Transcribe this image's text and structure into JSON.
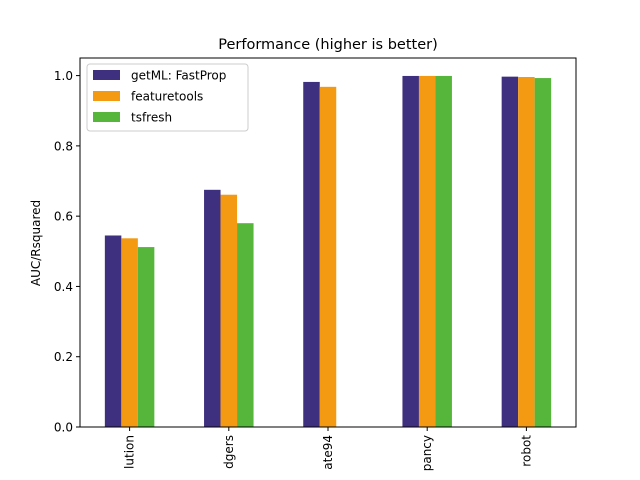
{
  "chart_data": {
    "type": "bar",
    "title": "Performance (higher is better)",
    "xlabel": "",
    "ylabel": "AUC/Rsquared",
    "ylim": [
      0,
      1.05
    ],
    "yticks": [
      "0.0",
      "0.2",
      "0.4",
      "0.6",
      "0.8",
      "1.0"
    ],
    "categories": [
      "lution",
      "dgers",
      "ate94",
      "pancy",
      "robot"
    ],
    "series": [
      {
        "name": "getML: FastProp",
        "color": "#3f2f7f",
        "values": [
          0.545,
          0.675,
          0.982,
          0.999,
          0.997
        ]
      },
      {
        "name": "featuretools",
        "color": "#f39a12",
        "values": [
          0.537,
          0.661,
          0.968,
          0.999,
          0.996
        ]
      },
      {
        "name": "tsfresh",
        "color": "#55b63b",
        "values": [
          0.512,
          0.58,
          null,
          0.999,
          0.993
        ]
      }
    ],
    "grid": false,
    "legend_position": "upper-left"
  }
}
